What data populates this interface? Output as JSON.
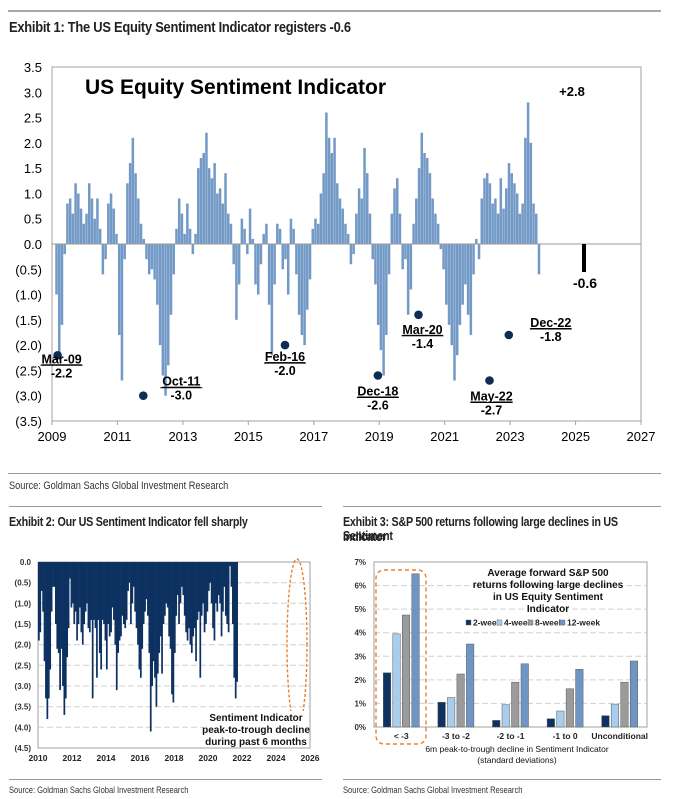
{
  "exhibit1": {
    "title": "Exhibit 1: The US Equity Sentiment Indicator registers -0.6",
    "source": "Source: Goldman Sachs Global Investment Research"
  },
  "exhibit2": {
    "title": "Exhibit 2: Our US Sentiment Indicator fell sharply",
    "source": "Source: Goldman Sachs Global Investment Research"
  },
  "exhibit3": {
    "title_line1": "Exhibit 3: S&P 500 returns following large declines in US Sentiment",
    "title_line2": "Indicator",
    "source": "Source: Goldman Sachs Global Investment Research"
  },
  "chart_data": [
    {
      "id": "exhibit1",
      "type": "bar",
      "title": "US Equity Sentiment Indicator",
      "xlabel": "",
      "ylabel": "",
      "xlim": [
        2009,
        2027
      ],
      "ylim": [
        -3.5,
        3.5
      ],
      "x_ticks": [
        "2009",
        "2011",
        "2013",
        "2015",
        "2017",
        "2019",
        "2021",
        "2023",
        "2025",
        "2027"
      ],
      "y_ticks": [
        "3.5",
        "3.0",
        "2.5",
        "2.0",
        "1.5",
        "1.0",
        "0.5",
        "0.0",
        "(0.5)",
        "(1.0)",
        "(1.5)",
        "(2.0)",
        "(2.5)",
        "(3.0)",
        "(3.5)"
      ],
      "series_color": "#7399c6",
      "start": 2009.1,
      "step_years": 0.0833,
      "values": [
        -1.0,
        -2.2,
        -1.6,
        -0.2,
        0.8,
        0.9,
        0.6,
        1.2,
        1.0,
        0.7,
        0.4,
        0.6,
        1.2,
        0.9,
        0.5,
        0.9,
        0.3,
        -0.6,
        -0.3,
        0.8,
        1.0,
        0.7,
        0.2,
        -1.8,
        -2.7,
        -0.3,
        1.2,
        1.6,
        2.1,
        1.4,
        0.9,
        0.4,
        0.1,
        -0.3,
        -0.6,
        -0.5,
        -0.7,
        -1.2,
        -2.0,
        -2.6,
        -3.0,
        -2.4,
        -1.4,
        -0.6,
        0.3,
        0.9,
        0.6,
        0.2,
        0.8,
        0.3,
        -0.2,
        0.2,
        1.5,
        1.7,
        1.8,
        2.2,
        1.5,
        1.3,
        1.6,
        1.0,
        1.1,
        0.8,
        1.4,
        0.6,
        0.4,
        -0.4,
        -1.5,
        -0.8,
        0.5,
        0.3,
        -0.2,
        0.7,
        0.1,
        -0.8,
        -1.0,
        -0.4,
        0.2,
        0.4,
        -1.2,
        -2.2,
        -0.8,
        0.4,
        0.3,
        -0.5,
        -0.3,
        -1.0,
        0.5,
        0.3,
        -0.6,
        -1.4,
        -1.8,
        -2.0,
        -1.3,
        -0.7,
        0.3,
        0.5,
        0.4,
        1.0,
        1.4,
        2.6,
        2.1,
        1.8,
        2.1,
        1.2,
        0.9,
        0.7,
        0.4,
        0.2,
        -0.4,
        -0.2,
        0.6,
        1.1,
        0.9,
        1.9,
        1.4,
        0.6,
        -0.3,
        -0.8,
        -1.6,
        -2.1,
        -2.6,
        -1.8,
        -0.6,
        0.6,
        1.1,
        1.3,
        0.6,
        -0.5,
        -0.3,
        -1.4,
        -0.9,
        0.4,
        0.9,
        1.5,
        2.2,
        1.8,
        1.7,
        1.4,
        0.9,
        0.6,
        0.4,
        -0.1,
        -0.5,
        -1.2,
        -1.6,
        -2.0,
        -2.7,
        -2.2,
        -1.6,
        -1.2,
        -0.8,
        -1.4,
        -1.8,
        -0.6,
        0.1,
        -0.3,
        0.9,
        1.3,
        1.4,
        1.2,
        0.8,
        0.9,
        0.6,
        1.3,
        0.7,
        1.1,
        1.6,
        1.4,
        1.2,
        1.0,
        0.6,
        0.8,
        2.1,
        2.8,
        2.0,
        0.8,
        0.6,
        -0.6
      ],
      "annotations": [
        {
          "label": "Mar-09",
          "value": "-2.2",
          "x": 2009.17,
          "y": -2.2
        },
        {
          "label": "Oct-11",
          "value": "-3.0",
          "x": 2011.79,
          "y": -3.0
        },
        {
          "label": "Feb-16",
          "value": "-2.0",
          "x": 2016.12,
          "y": -2.0
        },
        {
          "label": "Dec-18",
          "value": "-2.6",
          "x": 2018.96,
          "y": -2.6
        },
        {
          "label": "Mar-20",
          "value": "-1.4",
          "x": 2020.2,
          "y": -1.4
        },
        {
          "label": "May-22",
          "value": "-2.7",
          "x": 2022.37,
          "y": -2.7
        },
        {
          "label": "Dec-22",
          "value": "-1.8",
          "x": 2022.96,
          "y": -1.8
        }
      ],
      "callouts": {
        "peak": "+2.8",
        "latest": "-0.6"
      },
      "grid": false,
      "legend": "none"
    },
    {
      "id": "exhibit2",
      "type": "area",
      "title": "",
      "xlabel": "",
      "ylabel": "",
      "xlim": [
        2010,
        2026
      ],
      "ylim": [
        -4.5,
        0.0
      ],
      "x_ticks": [
        "2010",
        "2012",
        "2014",
        "2016",
        "2018",
        "2020",
        "2022",
        "2024",
        "2026"
      ],
      "y_ticks": [
        "0.0",
        "(0.5)",
        "(1.0)",
        "(1.5)",
        "(2.0)",
        "(2.5)",
        "(3.0)",
        "(3.5)",
        "(4.0)",
        "(4.5)"
      ],
      "series_color": "#0d3160",
      "start": 2010.0,
      "step_years": 0.0833,
      "values": [
        -1.9,
        -1.7,
        -0.7,
        -1.2,
        -2.4,
        -3.3,
        -3.8,
        -3.3,
        -2.6,
        -1.2,
        -0.6,
        -0.6,
        -1.5,
        -2.1,
        -2.2,
        -3.1,
        -2.1,
        -3.0,
        -3.7,
        -3.3,
        -2.3,
        -1.6,
        -0.4,
        -1.1,
        -1.0,
        -1.5,
        -1.2,
        -1.9,
        -1.5,
        -1.1,
        -1.7,
        -2.0,
        -1.5,
        -1.2,
        -1.0,
        -1.6,
        -1.7,
        -1.4,
        -3.3,
        -1.4,
        -1.6,
        -2.8,
        -1.4,
        -2.2,
        -2.6,
        -1.4,
        -1.5,
        -1.9,
        -2.6,
        -1.5,
        -1.8,
        -1.7,
        -1.1,
        -1.4,
        -2.0,
        -3.1,
        -2.2,
        -1.9,
        -1.8,
        -1.3,
        -1.5,
        -1.6,
        -1.4,
        -0.7,
        -0.5,
        -1.5,
        -1.0,
        -0.6,
        -1.2,
        -1.6,
        -2.0,
        -2.6,
        -2.8,
        -2.1,
        -1.5,
        -1.2,
        -0.9,
        -1.3,
        -2.2,
        -4.1,
        -3.0,
        -2.4,
        -2.8,
        -3.5,
        -2.7,
        -2.2,
        -1.8,
        -2.7,
        -1.5,
        -1.3,
        -1.0,
        -1.1,
        -1.8,
        -2.1,
        -3.2,
        -3.4,
        -2.2,
        -1.3,
        -0.8,
        -1.5,
        -1.0,
        -0.6,
        -0.8,
        -1.3,
        -1.7,
        -1.9,
        -1.6,
        -2.0,
        -2.2,
        -1.8,
        -1.6,
        -2.4,
        -1.4,
        -1.2,
        -2.8,
        -1.3,
        -1.0,
        -1.7,
        -1.5,
        -1.2,
        -0.7,
        -0.5,
        -1.0,
        -1.6,
        -1.9,
        -1.0,
        -1.2,
        -0.8,
        -1.0,
        -1.8,
        -1.2,
        -0.6,
        -1.3,
        -1.5,
        -1.7,
        -0.1,
        -0.6,
        -1.5,
        -2.8,
        -3.3,
        -2.9
      ],
      "annotation": "Sentiment Indicator peak-to-trough decline during past 6 months",
      "annotation_lines": [
        "Sentiment Indicator",
        "peak-to-trough decline",
        "during past 6 months"
      ],
      "highlight": "latest period circled",
      "grid": true,
      "legend": "none"
    },
    {
      "id": "exhibit3",
      "type": "bar",
      "title": "Average forward S&P 500 returns following large declines in US Equity Sentiment Indicator",
      "title_lines": [
        "Average forward S&P 500",
        "returns following large declines",
        "in US Equity Sentiment",
        "Indicator"
      ],
      "xlabel": "6m peak-to-trough decline in Sentiment Indicator (standard deviations)",
      "xlabel_lines": [
        "6m peak-to-trough decline in Sentiment Indicator",
        "(standard deviations)"
      ],
      "ylabel": "",
      "ylim": [
        0,
        7
      ],
      "y_ticks": [
        "7%",
        "6%",
        "5%",
        "4%",
        "3%",
        "2%",
        "1%",
        "0%"
      ],
      "categories": [
        "< -3",
        "-3 to -2",
        "-2 to -1",
        "-1 to 0",
        "Unconditional"
      ],
      "series": [
        {
          "name": "2-week",
          "color": "#0d3160",
          "values": [
            2.3,
            1.05,
            0.28,
            0.35,
            0.48
          ]
        },
        {
          "name": "4-week",
          "color": "#a9cdec",
          "values": [
            3.95,
            1.25,
            0.95,
            0.68,
            0.97
          ]
        },
        {
          "name": "8-week",
          "color": "#9b9b9b",
          "values": [
            4.75,
            2.25,
            1.9,
            1.62,
            1.9
          ]
        },
        {
          "name": "12-week",
          "color": "#6f95c5",
          "values": [
            6.5,
            3.52,
            2.68,
            2.45,
            2.8
          ]
        }
      ],
      "highlight": "< -3",
      "grid": true,
      "legend": "top-right"
    }
  ]
}
